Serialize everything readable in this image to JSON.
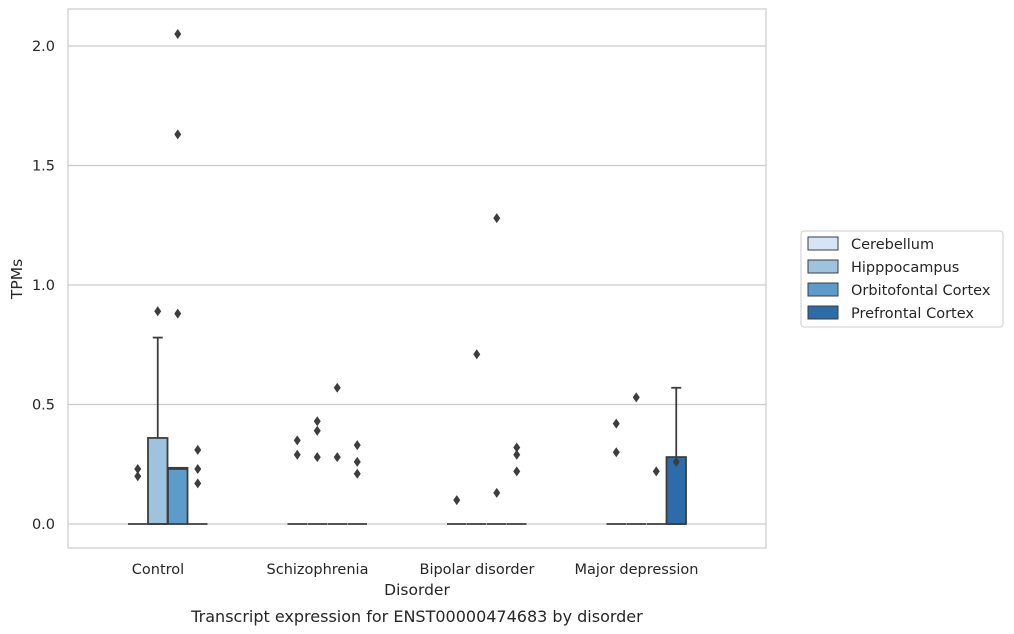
{
  "chart_data": {
    "type": "box",
    "title": "",
    "caption": "Transcript expression for ENST00000474683 by disorder",
    "xlabel": "Disorder",
    "ylabel": "TPMs",
    "ylim": [
      -0.1,
      2.15
    ],
    "yticks": [
      0.0,
      0.5,
      1.0,
      1.5,
      2.0
    ],
    "ytick_labels": [
      "0.0",
      "0.5",
      "1.0",
      "1.5",
      "2.0"
    ],
    "grid": "horizontal",
    "legend_position": "right",
    "categories": [
      "Control",
      "Schizophrenia",
      "Bipolar disorder",
      "Major depression"
    ],
    "series": [
      {
        "name": "Cerebellum",
        "color": "#d5e5f3",
        "boxes": [
          {
            "q1": 0.0,
            "median": 0.0,
            "q3": 0.0,
            "whisker_low": 0.0,
            "whisker_high": 0.0,
            "outliers": [
              0.2,
              0.23
            ]
          },
          {
            "q1": 0.0,
            "median": 0.0,
            "q3": 0.0,
            "whisker_low": 0.0,
            "whisker_high": 0.0,
            "outliers": [
              0.29,
              0.35
            ]
          },
          {
            "q1": 0.0,
            "median": 0.0,
            "q3": 0.0,
            "whisker_low": 0.0,
            "whisker_high": 0.0,
            "outliers": [
              0.1
            ]
          },
          {
            "q1": 0.0,
            "median": 0.0,
            "q3": 0.0,
            "whisker_low": 0.0,
            "whisker_high": 0.0,
            "outliers": [
              0.3,
              0.42
            ]
          }
        ]
      },
      {
        "name": "Hipppocampus",
        "color": "#9ec3de",
        "boxes": [
          {
            "q1": 0.0,
            "median": 0.0,
            "q3": 0.36,
            "whisker_low": 0.0,
            "whisker_high": 0.78,
            "outliers": [
              0.89
            ]
          },
          {
            "q1": 0.0,
            "median": 0.0,
            "q3": 0.0,
            "whisker_low": 0.0,
            "whisker_high": 0.0,
            "outliers": [
              0.28,
              0.39,
              0.43
            ]
          },
          {
            "q1": 0.0,
            "median": 0.0,
            "q3": 0.0,
            "whisker_low": 0.0,
            "whisker_high": 0.0,
            "outliers": [
              0.71
            ]
          },
          {
            "q1": 0.0,
            "median": 0.0,
            "q3": 0.0,
            "whisker_low": 0.0,
            "whisker_high": 0.0,
            "outliers": [
              0.53
            ]
          }
        ]
      },
      {
        "name": "Orbitofontal Cortex",
        "color": "#5d9cca",
        "boxes": [
          {
            "q1": 0.0,
            "median": 0.23,
            "q3": 0.235,
            "whisker_low": 0.0,
            "whisker_high": 0.235,
            "outliers": [
              0.88,
              1.63,
              2.05
            ]
          },
          {
            "q1": 0.0,
            "median": 0.0,
            "q3": 0.0,
            "whisker_low": 0.0,
            "whisker_high": 0.0,
            "outliers": [
              0.28,
              0.57
            ]
          },
          {
            "q1": 0.0,
            "median": 0.0,
            "q3": 0.0,
            "whisker_low": 0.0,
            "whisker_high": 0.0,
            "outliers": [
              0.13,
              1.28
            ]
          },
          {
            "q1": 0.0,
            "median": 0.0,
            "q3": 0.0,
            "whisker_low": 0.0,
            "whisker_high": 0.0,
            "outliers": [
              0.22
            ]
          }
        ]
      },
      {
        "name": "Prefrontal Cortex",
        "color": "#2d6ca8",
        "boxes": [
          {
            "q1": 0.0,
            "median": 0.0,
            "q3": 0.0,
            "whisker_low": 0.0,
            "whisker_high": 0.0,
            "outliers": [
              0.17,
              0.23,
              0.31
            ]
          },
          {
            "q1": 0.0,
            "median": 0.0,
            "q3": 0.0,
            "whisker_low": 0.0,
            "whisker_high": 0.0,
            "outliers": [
              0.21,
              0.26,
              0.33
            ]
          },
          {
            "q1": 0.0,
            "median": 0.0,
            "q3": 0.0,
            "whisker_low": 0.0,
            "whisker_high": 0.0,
            "outliers": [
              0.22,
              0.29,
              0.32
            ]
          },
          {
            "q1": 0.0,
            "median": 0.0,
            "q3": 0.28,
            "whisker_low": 0.0,
            "whisker_high": 0.57,
            "outliers": [
              0.26
            ]
          }
        ]
      }
    ]
  }
}
